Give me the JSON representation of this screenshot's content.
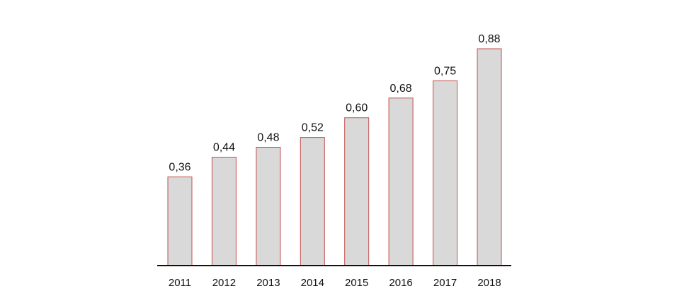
{
  "chart_data": {
    "type": "bar",
    "categories": [
      "2011",
      "2012",
      "2013",
      "2014",
      "2015",
      "2016",
      "2017",
      "2018"
    ],
    "values": [
      0.36,
      0.44,
      0.48,
      0.52,
      0.6,
      0.68,
      0.75,
      0.88
    ],
    "data_labels": [
      "0,36",
      "0,44",
      "0,48",
      "0,52",
      "0,60",
      "0,68",
      "0,75",
      "0,88"
    ],
    "title": "",
    "xlabel": "",
    "ylabel": "",
    "ylim": [
      0,
      0.9
    ],
    "grid": false,
    "legend": "none",
    "colors": {
      "bar_fill": "#d9d9d9",
      "bar_stroke": "#c0504d",
      "axis": "#111111"
    }
  }
}
